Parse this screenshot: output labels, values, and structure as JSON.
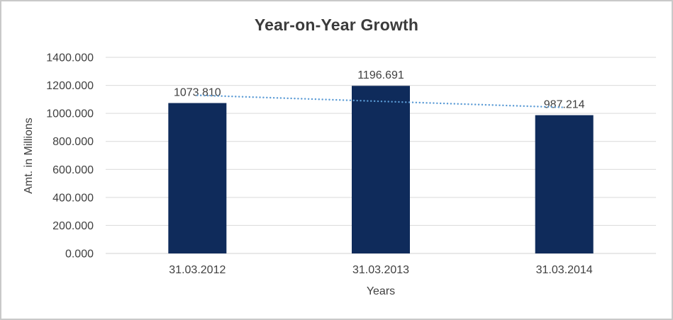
{
  "chart_data": {
    "type": "bar",
    "title": "Year-on-Year Growth",
    "xlabel": "Years",
    "ylabel": "Amt. in Millions",
    "categories": [
      "31.03.2012",
      "31.03.2013",
      "31.03.2014"
    ],
    "values": [
      1073.81,
      1196.691,
      987.214
    ],
    "value_labels": [
      "1073.810",
      "1196.691",
      "987.214"
    ],
    "ylim": [
      0,
      1400
    ],
    "ytick_step": 200,
    "ytick_labels": [
      "0.000",
      "200.000",
      "400.000",
      "600.000",
      "800.000",
      "1000.000",
      "1200.000",
      "1400.000"
    ],
    "grid": "horizontal",
    "legend": "none",
    "trendline": {
      "type": "linear",
      "style": "dotted"
    },
    "colors": {
      "bar": "#0f2b5b",
      "trendline": "#5b9bd5",
      "gridline": "#d9d9d9",
      "axis_line": "#d0d0d0",
      "text": "#404040",
      "title": "#3b3b3b",
      "frame_border": "#c9c9c9",
      "background": "#ffffff"
    }
  }
}
